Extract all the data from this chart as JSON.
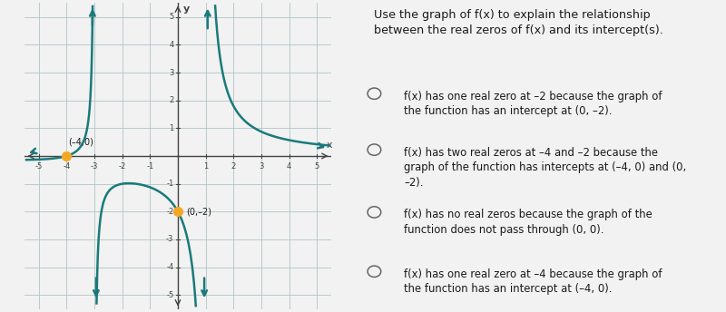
{
  "bg_color": "#e8eef0",
  "right_bg_color": "#f2f2f2",
  "graph_bg_color": "#d8e4e8",
  "curve_color": "#1a7a7a",
  "point_color": "#f5a623",
  "xlim": [
    -5.5,
    5.5
  ],
  "ylim": [
    -5.5,
    5.5
  ],
  "xticks": [
    -5,
    -4,
    -3,
    -2,
    -1,
    0,
    1,
    2,
    3,
    4,
    5
  ],
  "yticks": [
    -5,
    -4,
    -3,
    -2,
    -1,
    0,
    1,
    2,
    3,
    4,
    5
  ],
  "point1": [
    -4,
    0
  ],
  "point2": [
    0,
    -2
  ],
  "label1": "(–4,0)",
  "label2": "(0,–2)",
  "title": "Use the graph of f(x) to explain the relationship\nbetween the real zeros of f(x) and its intercept(s).",
  "options": [
    "f(x) has one real zero at –2 because the graph of\nthe function has an intercept at (0, –2).",
    "f(x) has two real zeros at –4 and –2 because the\ngraph of the function has intercepts at (–4, 0) and (0,\n–2).",
    "f(x) has no real zeros because the graph of the\nfunction does not pass through (0, 0).",
    "f(x) has one real zero at –4 because the graph of\nthe function has an intercept at (–4, 0)."
  ],
  "grid_color": "#b0c4c8",
  "axis_color": "#444444",
  "text_color": "#1a1a1a"
}
